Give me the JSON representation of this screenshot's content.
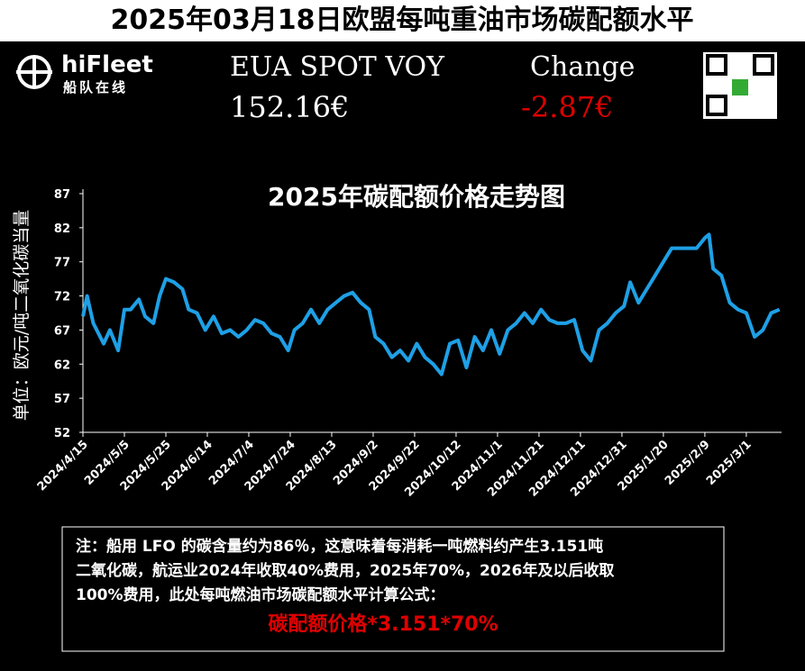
{
  "header": {
    "title": "2025年03月18日欧盟每吨重油市场碳配额水平",
    "logo_text": "hiFleet",
    "logo_sub": "船队在线",
    "label": "EUA SPOT VOY",
    "price": "152.16€",
    "change_label": "Change",
    "change": "-2.87€"
  },
  "note": {
    "lines": [
      "注：船用 LFO 的碳含量约为86％，这意味着每消耗一吨燃料约产生3.151吨",
      "二氧化碳，航运业2024年收取40%费用，2025年70%，2026年及以后收取",
      "100%费用，此处每吨燃油市场碳配额水平计算公式："
    ],
    "formula": "碳配额价格*3.151*70%"
  },
  "chart_data": {
    "type": "line",
    "title": "2025年碳配额价格走势图",
    "ylabel": "单位：欧元/吨二氧化碳当量",
    "color": "#1ea0e6",
    "x": [
      "2024/4/15",
      "2024/4/17",
      "2024/4/20",
      "2024/4/25",
      "2024/4/28",
      "2024/5/2",
      "2024/5/5",
      "2024/5/8",
      "2024/5/12",
      "2024/5/15",
      "2024/5/19",
      "2024/5/22",
      "2024/5/25",
      "2024/5/29",
      "2024/6/2",
      "2024/6/5",
      "2024/6/9",
      "2024/6/13",
      "2024/6/17",
      "2024/6/21",
      "2024/6/25",
      "2024/6/29",
      "2024/7/3",
      "2024/7/7",
      "2024/7/11",
      "2024/7/15",
      "2024/7/19",
      "2024/7/23",
      "2024/7/26",
      "2024/7/30",
      "2024/8/3",
      "2024/8/7",
      "2024/8/11",
      "2024/8/15",
      "2024/8/19",
      "2024/8/23",
      "2024/8/27",
      "2024/8/31",
      "2024/9/3",
      "2024/9/7",
      "2024/9/11",
      "2024/9/15",
      "2024/9/19",
      "2024/9/23",
      "2024/9/27",
      "2024/10/1",
      "2024/10/5",
      "2024/10/9",
      "2024/10/13",
      "2024/10/17",
      "2024/10/21",
      "2024/10/25",
      "2024/10/29",
      "2024/11/2",
      "2024/11/6",
      "2024/11/10",
      "2024/11/14",
      "2024/11/18",
      "2024/11/22",
      "2024/11/26",
      "2024/11/30",
      "2024/12/4",
      "2024/12/8",
      "2024/12/12",
      "2024/12/16",
      "2024/12/20",
      "2024/12/24",
      "2024/12/28",
      "2025/1/1",
      "2025/1/4",
      "2025/1/8",
      "2025/1/12",
      "2025/1/16",
      "2025/1/20",
      "2025/1/24",
      "2025/1/28",
      "2025/2/1",
      "2025/2/5",
      "2025/2/9",
      "2025/2/11",
      "2025/2/13",
      "2025/2/17",
      "2025/2/21",
      "2025/2/25",
      "2025/3/1",
      "2025/3/5",
      "2025/3/9",
      "2025/3/13",
      "2025/3/17"
    ],
    "values": [
      69,
      72,
      68,
      65,
      67,
      64,
      70,
      70,
      71.5,
      69,
      68,
      72,
      74.5,
      74,
      73,
      70,
      69.5,
      67,
      69,
      66.5,
      67,
      66,
      67,
      68.5,
      68,
      66.5,
      66,
      64,
      67,
      68,
      70,
      68,
      70,
      71,
      72,
      72.5,
      71,
      70,
      66,
      65,
      63,
      64,
      62.5,
      65,
      63,
      62,
      60.5,
      65,
      65.5,
      61.5,
      66,
      64,
      67,
      63.5,
      67,
      68,
      69.5,
      68,
      70,
      68.5,
      68,
      68,
      68.5,
      64,
      62.5,
      67,
      68,
      69.5,
      70.5,
      74,
      71,
      73,
      75,
      77,
      79,
      79,
      79,
      79,
      80.5,
      81,
      76,
      75,
      71,
      70,
      69.5,
      66,
      67,
      69.5,
      70
    ],
    "xlim": [
      "2024/4/15",
      "2025/3/18"
    ],
    "xticks": [
      "2024/4/15",
      "2024/5/5",
      "2024/5/25",
      "2024/6/14",
      "2024/7/4",
      "2024/7/24",
      "2024/8/13",
      "2024/9/2",
      "2024/9/22",
      "2024/10/12",
      "2024/11/1",
      "2024/11/21",
      "2024/12/11",
      "2024/12/31",
      "2025/1/20",
      "2025/2/9",
      "2025/3/1"
    ],
    "ylim": [
      52,
      87
    ],
    "yticks": [
      52,
      57,
      62,
      67,
      72,
      77,
      82,
      87
    ]
  }
}
